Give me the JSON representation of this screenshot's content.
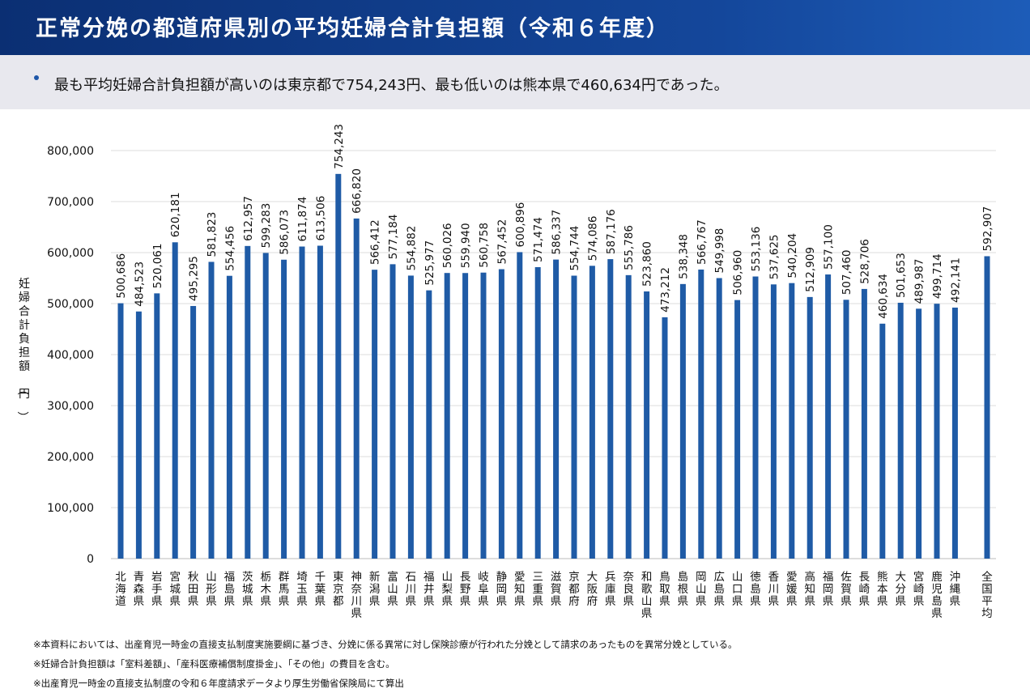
{
  "header": {
    "title": "正常分娩の都道府県別の平均妊婦合計負担額（令和６年度）"
  },
  "summary": {
    "text": "最も平均妊婦合計負担額が高いのは東京都で754,243円、最も低いのは熊本県で460,634円であった。"
  },
  "notes": [
    "※本資料においては、出産育児一時金の直接支払制度実施要綱に基づき、分娩に係る異常に対し保険診療が行われた分娩として請求のあったものを異常分娩としている。",
    "※妊婦合計負担額は「室料差額」、「産科医療補償制度掛金」、「その他」の費目を含む。",
    "※出産育児一時金の直接支払制度の令和６年度請求データより厚生労働省保険局にて算出"
  ],
  "colors": {
    "bar": "#1f5ba6",
    "header": "#12418f",
    "grid": "#dddddd"
  },
  "chart_data": {
    "type": "bar",
    "ylabel": "妊婦合計負担額（円）",
    "ylim": [
      0,
      800000
    ],
    "yticks": [
      "0",
      "100,000",
      "200,000",
      "300,000",
      "400,000",
      "500,000",
      "600,000",
      "700,000",
      "800,000"
    ],
    "grid": true,
    "categories": [
      "北海道",
      "青森県",
      "岩手県",
      "宮城県",
      "秋田県",
      "山形県",
      "福島県",
      "茨城県",
      "栃木県",
      "群馬県",
      "埼玉県",
      "千葉県",
      "東京都",
      "神奈川県",
      "新潟県",
      "富山県",
      "石川県",
      "福井県",
      "山梨県",
      "長野県",
      "岐阜県",
      "静岡県",
      "愛知県",
      "三重県",
      "滋賀県",
      "京都府",
      "大阪府",
      "兵庫県",
      "奈良県",
      "和歌山県",
      "鳥取県",
      "島根県",
      "岡山県",
      "広島県",
      "山口県",
      "徳島県",
      "香川県",
      "愛媛県",
      "高知県",
      "福岡県",
      "佐賀県",
      "長崎県",
      "熊本県",
      "大分県",
      "宮崎県",
      "鹿児島県",
      "沖縄県",
      "全国平均"
    ],
    "values": [
      500686,
      484523,
      520061,
      620181,
      495295,
      581823,
      554456,
      612957,
      599283,
      586073,
      611874,
      613506,
      754243,
      666820,
      566412,
      577184,
      554882,
      525977,
      560026,
      559940,
      560758,
      567452,
      600896,
      571474,
      586337,
      554744,
      574086,
      587176,
      555786,
      523860,
      473212,
      538348,
      566767,
      549998,
      506960,
      553136,
      537625,
      540204,
      512909,
      557100,
      507460,
      528706,
      460634,
      501653,
      489987,
      499714,
      492141,
      592907
    ],
    "labels": [
      "500,686",
      "484,523",
      "520,061",
      "620,181",
      "495,295",
      "581,823",
      "554,456",
      "612,957",
      "599,283",
      "586,073",
      "611,874",
      "613,506",
      "754,243",
      "666,820",
      "566,412",
      "577,184",
      "554,882",
      "525,977",
      "560,026",
      "559,940",
      "560,758",
      "567,452",
      "600,896",
      "571,474",
      "586,337",
      "554,744",
      "574,086",
      "587,176",
      "555,786",
      "523,860",
      "473,212",
      "538,348",
      "566,767",
      "549,998",
      "506,960",
      "553,136",
      "537,625",
      "540,204",
      "512,909",
      "557,100",
      "507,460",
      "528,706",
      "460,634",
      "501,653",
      "489,987",
      "499,714",
      "492,141",
      "592,907"
    ]
  }
}
